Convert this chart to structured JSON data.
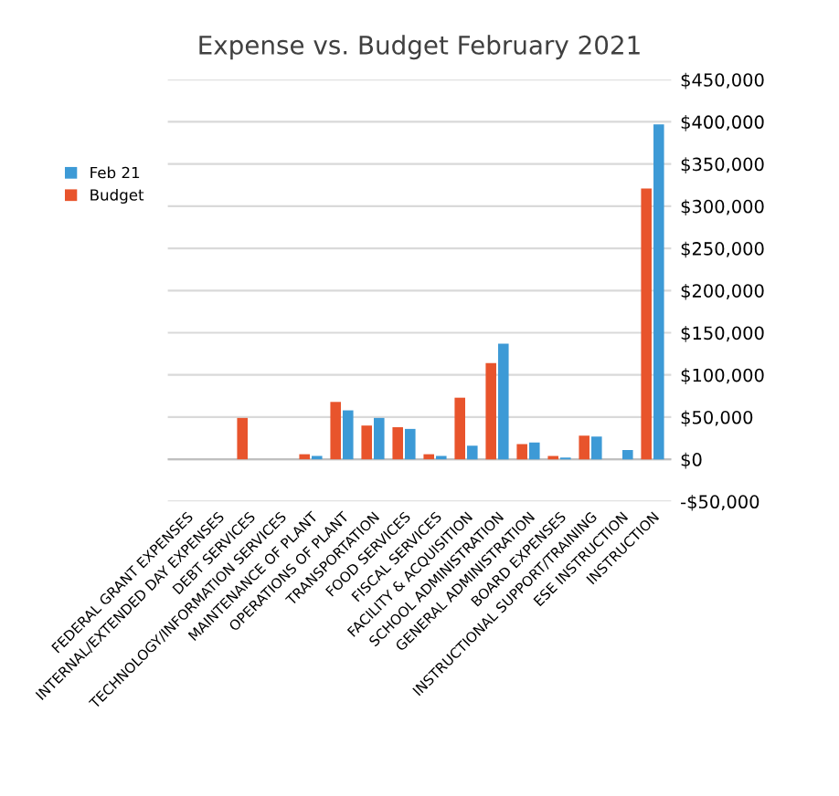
{
  "chart_data": {
    "type": "bar",
    "title": "Expense vs. Budget February 2021",
    "categories": [
      "FEDERAL GRANT EXPENSES",
      "INTERNAL/EXTENDED DAY EXPENSES",
      "DEBT SERVICES",
      "TECHNOLOGY/INFORMATION SERVICES",
      "MAINTENANCE OF PLANT",
      "OPERATIONS OF PLANT",
      "TRANSPORTATION",
      "FOOD SERVICES",
      "FISCAL SERVICES",
      "FACILITY & ACQUISITION",
      "SCHOOL ADMINISTRATION",
      "GENERAL ADMINISTRATION",
      "BOARD EXPENSES",
      "INSTRUCTIONAL SUPPORT/TRAINING",
      "ESE INSTRUCTION",
      "INSTRUCTION"
    ],
    "series": [
      {
        "name": "Budget",
        "color": "#e8542c",
        "values": [
          0,
          0,
          49000,
          0,
          6000,
          68000,
          40000,
          38000,
          6000,
          73000,
          114000,
          18000,
          4000,
          28000,
          0,
          321000
        ]
      },
      {
        "name": "Feb 21",
        "color": "#3d9ad6",
        "values": [
          0,
          0,
          0,
          0,
          4000,
          58000,
          49000,
          36000,
          4000,
          16000,
          137000,
          20000,
          2000,
          27000,
          11000,
          397000
        ]
      }
    ],
    "ylim": [
      -50000,
      450000
    ],
    "yticks": [
      {
        "value": -50000,
        "label": "-$50,000"
      },
      {
        "value": 0,
        "label": "$0"
      },
      {
        "value": 50000,
        "label": "$50,000"
      },
      {
        "value": 100000,
        "label": "$100,000"
      },
      {
        "value": 150000,
        "label": "$150,000"
      },
      {
        "value": 200000,
        "label": "$200,000"
      },
      {
        "value": 250000,
        "label": "$250,000"
      },
      {
        "value": 300000,
        "label": "$300,000"
      },
      {
        "value": 350000,
        "label": "$350,000"
      },
      {
        "value": 400000,
        "label": "$400,000"
      },
      {
        "value": 450000,
        "label": "$450,000"
      }
    ],
    "grid": "y",
    "legend": "left"
  }
}
